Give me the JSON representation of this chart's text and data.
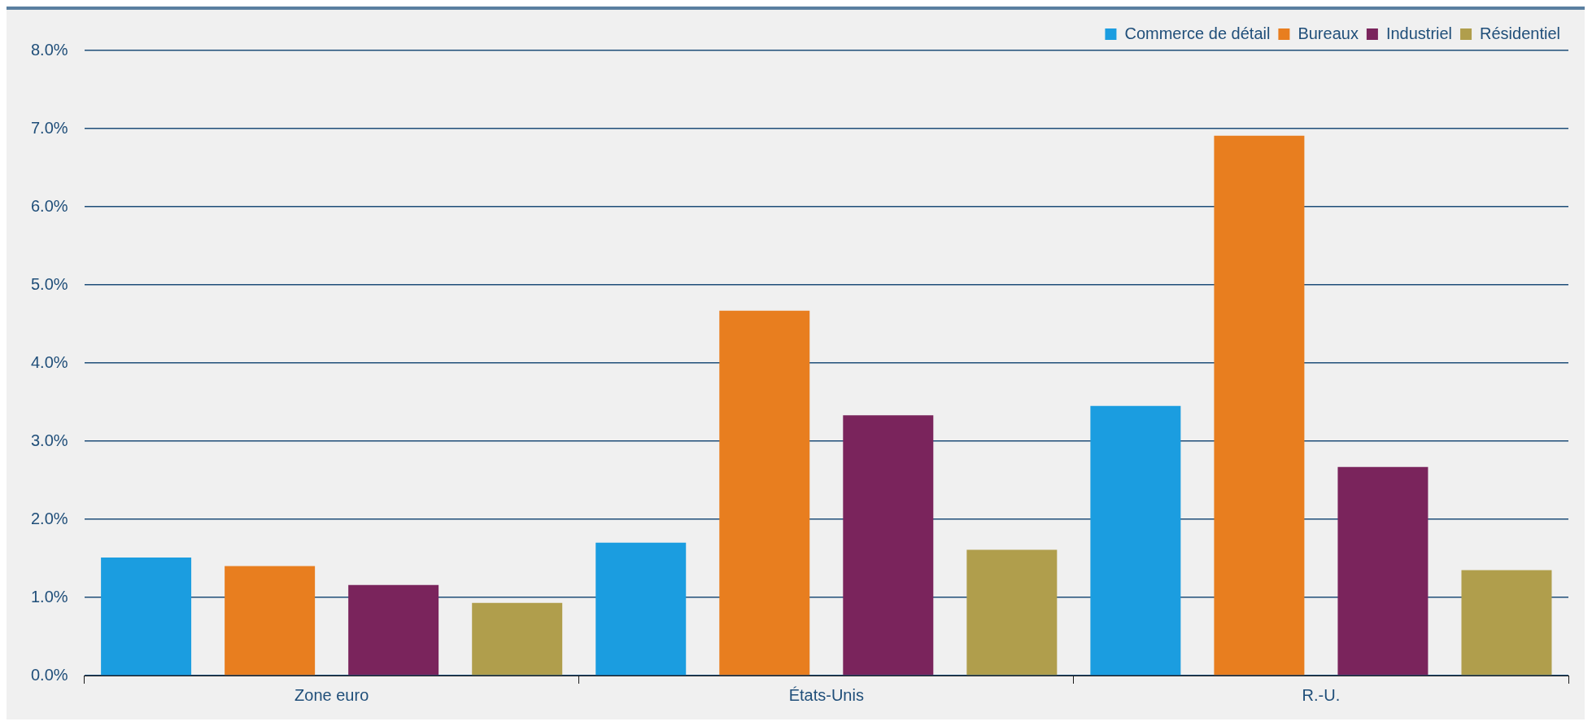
{
  "chart_data": {
    "type": "bar",
    "categories": [
      "Zone euro",
      "États-Unis",
      "R.-U."
    ],
    "series": [
      {
        "name": "Commerce de détail",
        "color": "#1b9de0",
        "values": [
          1.51,
          1.7,
          3.45
        ]
      },
      {
        "name": "Bureaux",
        "color": "#e87e1f",
        "values": [
          1.4,
          4.67,
          6.91
        ]
      },
      {
        "name": "Industriel",
        "color": "#7a245c",
        "values": [
          1.16,
          3.33,
          2.67
        ]
      },
      {
        "name": "Résidentiel",
        "color": "#b09e4c",
        "values": [
          0.93,
          1.61,
          1.35
        ]
      }
    ],
    "ylim": [
      0,
      8
    ],
    "yticks": [
      {
        "value": 0,
        "label": "0.0%"
      },
      {
        "value": 1,
        "label": "1.0%"
      },
      {
        "value": 2,
        "label": "2.0%"
      },
      {
        "value": 3,
        "label": "3.0%"
      },
      {
        "value": 4,
        "label": "4.0%"
      },
      {
        "value": 5,
        "label": "5.0%"
      },
      {
        "value": 6,
        "label": "6.0%"
      },
      {
        "value": 7,
        "label": "7.0%"
      },
      {
        "value": 8,
        "label": "8.0%"
      }
    ],
    "grid": "y",
    "legend": "top right"
  }
}
